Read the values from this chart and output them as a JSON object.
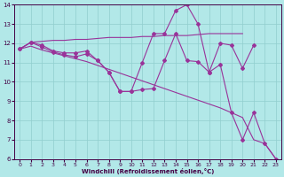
{
  "xlabel": "Windchill (Refroidissement éolien,°C)",
  "background_color": "#b2e8e8",
  "grid_color": "#90cece",
  "line_color": "#993399",
  "marker": "D",
  "markersize": 2.0,
  "linewidth": 0.8,
  "ylim": [
    6,
    14
  ],
  "xlim": [
    -0.5,
    23.5
  ],
  "yticks": [
    6,
    7,
    8,
    9,
    10,
    11,
    12,
    13,
    14
  ],
  "xticks": [
    0,
    1,
    2,
    3,
    4,
    5,
    6,
    7,
    8,
    9,
    10,
    11,
    12,
    13,
    14,
    15,
    16,
    17,
    18,
    19,
    20,
    21,
    22,
    23
  ],
  "line_upper_straight_x": [
    0,
    1,
    2,
    3,
    4,
    5,
    6,
    7,
    8,
    9,
    10,
    11,
    12,
    13,
    14,
    15,
    16,
    17,
    18,
    19,
    20
  ],
  "line_upper_straight_y": [
    11.7,
    12.05,
    12.1,
    12.15,
    12.15,
    12.2,
    12.2,
    12.25,
    12.3,
    12.3,
    12.3,
    12.35,
    12.35,
    12.4,
    12.4,
    12.4,
    12.45,
    12.5,
    12.5,
    12.5,
    12.5
  ],
  "line_lower_straight_x": [
    0,
    1,
    2,
    3,
    4,
    5,
    6,
    7,
    8,
    9,
    10,
    11,
    12,
    13,
    14,
    15,
    16,
    17,
    18,
    19,
    20,
    21,
    22,
    23
  ],
  "line_lower_straight_y": [
    11.7,
    11.85,
    11.65,
    11.5,
    11.35,
    11.2,
    11.05,
    10.85,
    10.65,
    10.45,
    10.25,
    10.05,
    9.85,
    9.65,
    9.45,
    9.25,
    9.05,
    8.85,
    8.65,
    8.4,
    8.15,
    7.0,
    6.8,
    6.0
  ],
  "line_jagged1_x": [
    0,
    1,
    2,
    3,
    4,
    5,
    6,
    7,
    8,
    9,
    10,
    11,
    12,
    13,
    14,
    15,
    16,
    17,
    18,
    19,
    20,
    21
  ],
  "line_jagged1_y": [
    11.7,
    12.05,
    11.9,
    11.6,
    11.5,
    11.5,
    11.6,
    11.1,
    10.5,
    9.5,
    9.5,
    11.0,
    12.5,
    12.5,
    13.7,
    14.0,
    13.0,
    10.5,
    12.0,
    11.9,
    10.7,
    11.9
  ],
  "line_jagged2_x": [
    0,
    1,
    2,
    3,
    4,
    5,
    6,
    7,
    8,
    9,
    10,
    11,
    12,
    13,
    14,
    15,
    16,
    17,
    18,
    19,
    20,
    21,
    22,
    23
  ],
  "line_jagged2_y": [
    11.7,
    12.05,
    11.8,
    11.55,
    11.4,
    11.3,
    11.45,
    11.1,
    10.5,
    9.5,
    9.5,
    9.6,
    9.65,
    11.1,
    12.5,
    11.1,
    11.05,
    10.5,
    10.9,
    8.4,
    7.0,
    8.4,
    6.8,
    6.0
  ]
}
